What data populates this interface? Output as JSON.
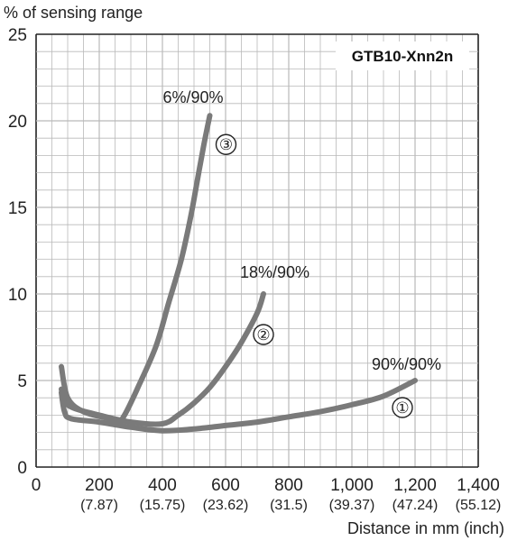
{
  "chart_data": {
    "type": "line",
    "title": "GTB10-Xnn2n",
    "ylabel": "% of sensing range",
    "xlabel": "Distance in mm (inch)",
    "xlim": [
      0,
      1400
    ],
    "ylim": [
      0,
      25
    ],
    "grid": true,
    "x_ticks": [
      {
        "value": 0,
        "label": "0",
        "inch": ""
      },
      {
        "value": 200,
        "label": "200",
        "inch": "(7.87)"
      },
      {
        "value": 400,
        "label": "400",
        "inch": "(15.75)"
      },
      {
        "value": 600,
        "label": "600",
        "inch": "(23.62)"
      },
      {
        "value": 800,
        "label": "800",
        "inch": "(31.5)"
      },
      {
        "value": 1000,
        "label": "1,000",
        "inch": "(39.37)"
      },
      {
        "value": 1200,
        "label": "1,200",
        "inch": "(47.24)"
      },
      {
        "value": 1400,
        "label": "1,400",
        "inch": "(55.12)"
      }
    ],
    "y_ticks": [
      {
        "value": 0,
        "label": "0"
      },
      {
        "value": 5,
        "label": "5"
      },
      {
        "value": 10,
        "label": "10"
      },
      {
        "value": 15,
        "label": "15"
      },
      {
        "value": 20,
        "label": "20"
      },
      {
        "value": 25,
        "label": "25"
      }
    ],
    "series": [
      {
        "name": "90%/90%",
        "marker": "①",
        "color": "#7a7a7a",
        "points": [
          [
            80,
            4.3
          ],
          [
            90,
            3.2
          ],
          [
            110,
            2.8
          ],
          [
            200,
            2.6
          ],
          [
            300,
            2.3
          ],
          [
            400,
            2.1
          ],
          [
            500,
            2.2
          ],
          [
            600,
            2.4
          ],
          [
            700,
            2.6
          ],
          [
            800,
            2.9
          ],
          [
            900,
            3.2
          ],
          [
            1000,
            3.6
          ],
          [
            1100,
            4.1
          ],
          [
            1200,
            5.0
          ]
        ]
      },
      {
        "name": "18%/90%",
        "marker": "②",
        "color": "#7a7a7a",
        "points": [
          [
            80,
            4.5
          ],
          [
            90,
            3.8
          ],
          [
            120,
            3.4
          ],
          [
            200,
            3.0
          ],
          [
            300,
            2.6
          ],
          [
            400,
            2.5
          ],
          [
            450,
            3.0
          ],
          [
            500,
            3.7
          ],
          [
            550,
            4.6
          ],
          [
            600,
            5.8
          ],
          [
            650,
            7.2
          ],
          [
            700,
            8.9
          ],
          [
            720,
            10.0
          ]
        ]
      },
      {
        "name": "6%/90%",
        "marker": "③",
        "color": "#7a7a7a",
        "points": [
          [
            80,
            5.8
          ],
          [
            100,
            4.0
          ],
          [
            150,
            3.2
          ],
          [
            230,
            2.8
          ],
          [
            260,
            2.6
          ],
          [
            280,
            3.0
          ],
          [
            320,
            4.5
          ],
          [
            380,
            7.0
          ],
          [
            420,
            9.5
          ],
          [
            460,
            12.0
          ],
          [
            490,
            14.5
          ],
          [
            510,
            16.5
          ],
          [
            530,
            18.5
          ],
          [
            550,
            20.3
          ]
        ]
      }
    ]
  }
}
